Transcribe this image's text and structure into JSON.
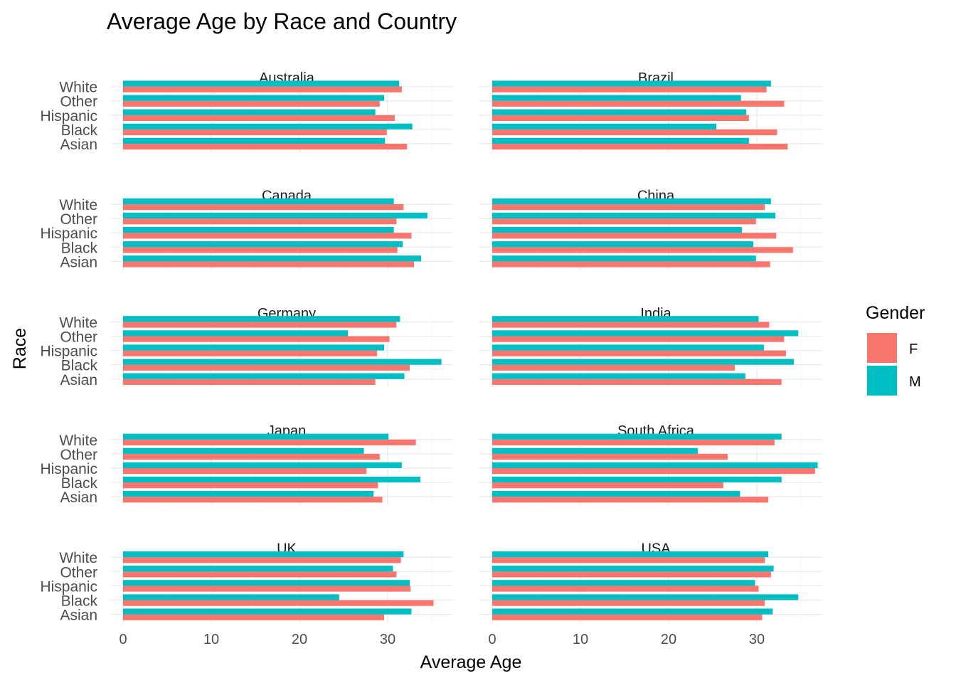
{
  "chart_data": {
    "type": "bar",
    "orientation": "horizontal",
    "title": "Average Age by Race and Country",
    "xlabel": "Average Age",
    "ylabel": "Race",
    "xlim": [
      0,
      38.5
    ],
    "xticks": [
      0,
      10,
      20,
      30
    ],
    "categories": [
      "Asian",
      "Black",
      "Hispanic",
      "Other",
      "White"
    ],
    "legend": {
      "title": "Gender",
      "position": "right",
      "entries": [
        {
          "name": "F",
          "color": "#F8766D"
        },
        {
          "name": "M",
          "color": "#00BFC4"
        }
      ]
    },
    "grid": true,
    "panels": [
      {
        "country": "Australia",
        "series": [
          {
            "name": "F",
            "values": [
              32.2,
              29.9,
              30.8,
              29.1,
              31.6
            ]
          },
          {
            "name": "M",
            "values": [
              29.7,
              32.8,
              28.6,
              29.6,
              31.3
            ]
          }
        ]
      },
      {
        "country": "Brazil",
        "series": [
          {
            "name": "F",
            "values": [
              33.5,
              32.3,
              29.1,
              33.1,
              31.1
            ]
          },
          {
            "name": "M",
            "values": [
              29.1,
              25.4,
              28.8,
              28.2,
              31.6
            ]
          }
        ]
      },
      {
        "country": "Canada",
        "series": [
          {
            "name": "F",
            "values": [
              33.0,
              31.1,
              32.7,
              31.0,
              31.8
            ]
          },
          {
            "name": "M",
            "values": [
              33.8,
              31.7,
              30.7,
              34.5,
              30.7
            ]
          }
        ]
      },
      {
        "country": "China",
        "series": [
          {
            "name": "F",
            "values": [
              31.5,
              34.1,
              32.2,
              29.9,
              30.9
            ]
          },
          {
            "name": "M",
            "values": [
              29.9,
              29.6,
              28.3,
              32.1,
              31.6
            ]
          }
        ]
      },
      {
        "country": "Germany",
        "series": [
          {
            "name": "F",
            "values": [
              28.6,
              32.5,
              28.8,
              30.2,
              31.0
            ]
          },
          {
            "name": "M",
            "values": [
              31.9,
              36.1,
              29.6,
              25.5,
              31.4
            ]
          }
        ]
      },
      {
        "country": "India",
        "series": [
          {
            "name": "F",
            "values": [
              32.8,
              27.5,
              33.3,
              33.1,
              31.4
            ]
          },
          {
            "name": "M",
            "values": [
              28.7,
              34.2,
              30.8,
              34.7,
              30.2
            ]
          }
        ]
      },
      {
        "country": "Japan",
        "series": [
          {
            "name": "F",
            "values": [
              29.4,
              28.9,
              27.6,
              29.1,
              33.2
            ]
          },
          {
            "name": "M",
            "values": [
              28.4,
              33.7,
              31.6,
              27.3,
              30.1
            ]
          }
        ]
      },
      {
        "country": "South Africa",
        "series": [
          {
            "name": "F",
            "values": [
              31.3,
              26.2,
              36.6,
              26.7,
              32.0
            ]
          },
          {
            "name": "M",
            "values": [
              28.1,
              32.8,
              36.9,
              23.3,
              32.8
            ]
          }
        ]
      },
      {
        "country": "UK",
        "series": [
          {
            "name": "F",
            "values": [
              29.6,
              35.2,
              32.6,
              31.0,
              31.5
            ]
          },
          {
            "name": "M",
            "values": [
              32.7,
              24.5,
              32.5,
              30.6,
              31.8
            ]
          }
        ]
      },
      {
        "country": "USA",
        "series": [
          {
            "name": "F",
            "values": [
              30.6,
              30.9,
              30.2,
              31.6,
              30.9
            ]
          },
          {
            "name": "M",
            "values": [
              31.8,
              34.7,
              29.8,
              31.9,
              31.3
            ]
          }
        ]
      }
    ]
  }
}
